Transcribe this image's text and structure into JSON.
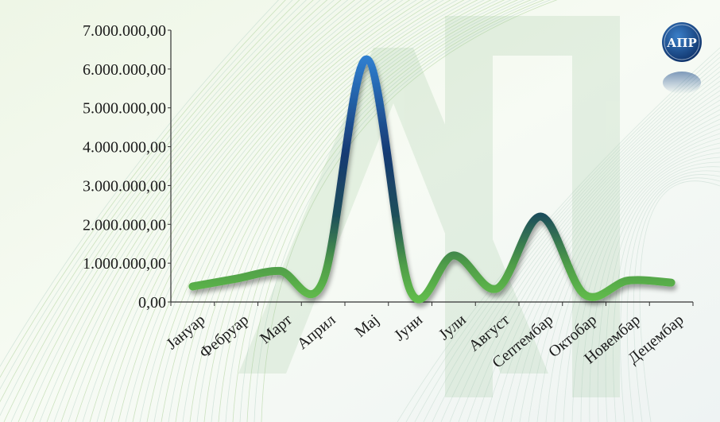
{
  "logo": {
    "text": "АПР"
  },
  "chart_data": {
    "type": "line",
    "categories": [
      "Јануар",
      "Фебруар",
      "Март",
      "Април",
      "Мај",
      "Јуни",
      "Јули",
      "Август",
      "Септембар",
      "Октобар",
      "Новембар",
      "Децембар"
    ],
    "series": [
      {
        "values": [
          400000,
          600000,
          800000,
          550000,
          6250000,
          300000,
          1200000,
          350000,
          2200000,
          200000,
          550000,
          500000
        ]
      }
    ],
    "ylim": [
      0,
      7000000
    ],
    "yticks": [
      "0,00",
      "1.000.000,00",
      "2.000.000,00",
      "3.000.000,00",
      "4.000.000,00",
      "5.000.000,00",
      "6.000.000,00",
      "7.000.000,00"
    ],
    "xlabel": "",
    "ylabel": "",
    "title": "",
    "grid": false,
    "colors": {
      "low": "#5fb84a",
      "mid": "#1f3f6e",
      "high": "#2a6fc0",
      "axis": "#333333",
      "text": "#1a1a1a"
    }
  }
}
